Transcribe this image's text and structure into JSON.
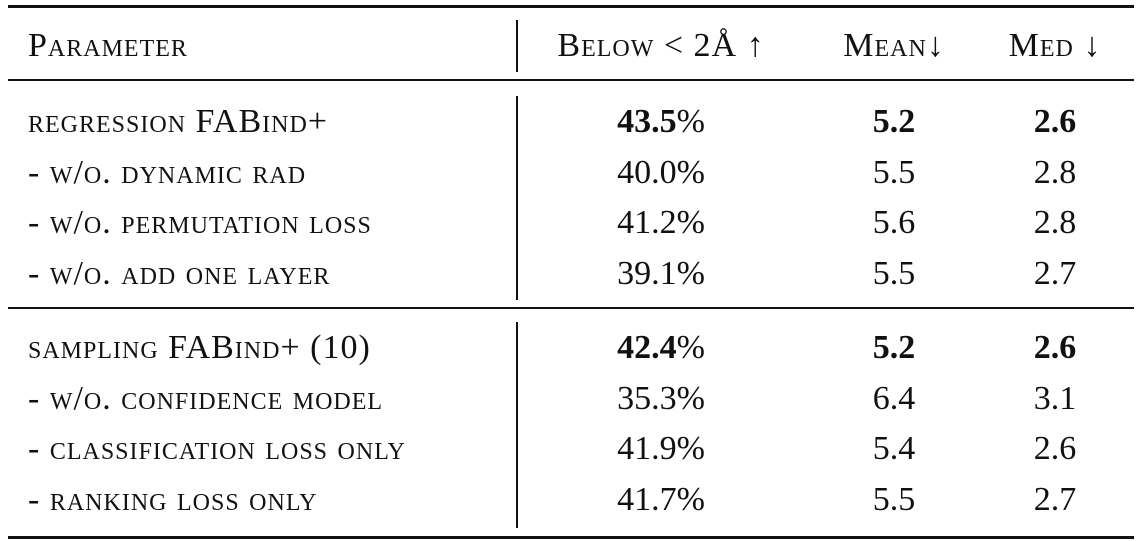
{
  "header": {
    "parameter": "Parameter",
    "below": "Below < 2Å ↑",
    "mean": "Mean↓",
    "med": "Med ↓"
  },
  "groups": [
    {
      "rows": [
        {
          "label": "regression FABind+",
          "below": "43.5",
          "pct": "%",
          "mean": "5.2",
          "med": "2.6",
          "bold": true
        },
        {
          "label": "- w/o. dynamic rad",
          "below": "40.0",
          "pct": "%",
          "mean": "5.5",
          "med": "2.8",
          "bold": false
        },
        {
          "label": "- w/o. permutation loss",
          "below": "41.2",
          "pct": "%",
          "mean": "5.6",
          "med": "2.8",
          "bold": false
        },
        {
          "label": "- w/o. add one layer",
          "below": "39.1",
          "pct": "%",
          "mean": "5.5",
          "med": "2.7",
          "bold": false
        }
      ]
    },
    {
      "rows": [
        {
          "label": "sampling FABind+ (10)",
          "below": "42.4",
          "pct": "%",
          "mean": "5.2",
          "med": "2.6",
          "bold": true
        },
        {
          "label": "- w/o. confidence model",
          "below": "35.3",
          "pct": "%",
          "mean": "6.4",
          "med": "3.1",
          "bold": false
        },
        {
          "label": "- classification loss only",
          "below": "41.9",
          "pct": "%",
          "mean": "5.4",
          "med": "2.6",
          "bold": false
        },
        {
          "label": "- ranking loss only",
          "below": "41.7",
          "pct": "%",
          "mean": "5.5",
          "med": "2.7",
          "bold": false
        }
      ]
    }
  ]
}
